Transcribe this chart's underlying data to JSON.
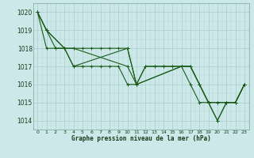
{
  "title": "Graphe pression niveau de la mer (hPa)",
  "bg_color": "#cce8e8",
  "grid_color_major": "#aacccc",
  "line_color": "#1a5c1a",
  "marker_color": "#1a5c1a",
  "ylim": [
    1013.5,
    1020.5
  ],
  "xlim": [
    -0.5,
    23.5
  ],
  "yticks": [
    1014,
    1015,
    1016,
    1017,
    1018,
    1019,
    1020
  ],
  "xticks": [
    0,
    1,
    2,
    3,
    4,
    5,
    6,
    7,
    8,
    9,
    10,
    11,
    12,
    13,
    14,
    15,
    16,
    17,
    18,
    19,
    20,
    21,
    22,
    23
  ],
  "series": [
    {
      "x": [
        0,
        1,
        2,
        3,
        4,
        5,
        6,
        7,
        8,
        9,
        10,
        11,
        12,
        13,
        14,
        15,
        16,
        17,
        18,
        19,
        20,
        21,
        22,
        23
      ],
      "y": [
        1020,
        1019,
        1018,
        1018,
        1017,
        1017,
        1017,
        1017,
        1017,
        1017,
        1016,
        1016,
        1017,
        1017,
        1017,
        1017,
        1017,
        1017,
        1016,
        1015,
        1015,
        1015,
        1015,
        1016
      ]
    },
    {
      "x": [
        0,
        1,
        2,
        3,
        4,
        5,
        6,
        7,
        8,
        9,
        10,
        11,
        12,
        13,
        14,
        15,
        16,
        17,
        18,
        19,
        20,
        21,
        22,
        23
      ],
      "y": [
        1020,
        1018,
        1018,
        1018,
        1018,
        1018,
        1018,
        1018,
        1018,
        1018,
        1018,
        1016,
        1017,
        1017,
        1017,
        1017,
        1017,
        1016,
        1015,
        1015,
        1015,
        1015,
        1015,
        1016
      ]
    },
    {
      "x": [
        0,
        1,
        3,
        4,
        10,
        11,
        16,
        17,
        18,
        19,
        20,
        21,
        22,
        23
      ],
      "y": [
        1020,
        1019,
        1018,
        1017,
        1018,
        1016,
        1017,
        1017,
        1016,
        1015,
        1014,
        1015,
        1015,
        1016
      ]
    },
    {
      "x": [
        0,
        1,
        3,
        4,
        10,
        11,
        16,
        17,
        18,
        19,
        20,
        21,
        22,
        23
      ],
      "y": [
        1020,
        1019,
        1018,
        1018,
        1017,
        1016,
        1017,
        1017,
        1016,
        1015,
        1014,
        1015,
        1015,
        1016
      ]
    }
  ]
}
